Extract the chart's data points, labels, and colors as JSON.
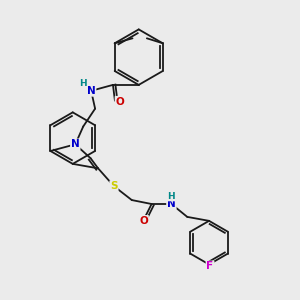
{
  "background_color": "#ebebeb",
  "atom_colors": {
    "N": "#0000cc",
    "O": "#cc0000",
    "S": "#cccc00",
    "F": "#cc00cc",
    "C": "#1a1a1a",
    "H": "#008888"
  },
  "bond_color": "#1a1a1a",
  "figsize": [
    3.0,
    3.0
  ],
  "dpi": 100
}
